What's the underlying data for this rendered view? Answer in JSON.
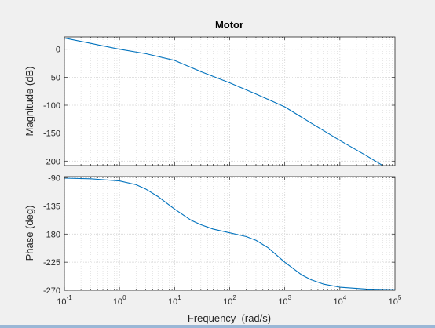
{
  "colors": {
    "figure_bg": "#f0f0f0",
    "axes_bg": "#ffffff",
    "line": "#0072bd",
    "grid": "#d6d6d6",
    "axis": "#262626"
  },
  "chart_data": [
    {
      "type": "line",
      "title": "Motor",
      "xlabel": "",
      "ylabel": "Magnitude (dB)",
      "xscale": "log",
      "xlim": [
        0.1,
        100000
      ],
      "ylim": [
        -208,
        22
      ],
      "yticks": [
        0,
        -50,
        -100,
        -150,
        -200
      ],
      "grid": true,
      "series": [
        {
          "x": [
            0.1,
            0.3,
            1,
            3,
            10,
            30,
            100,
            300,
            1000,
            3000,
            10000,
            30000,
            65000
          ],
          "values": [
            20,
            10.5,
            0,
            -8,
            -20,
            -40,
            -60,
            -80,
            -103,
            -132,
            -163,
            -190,
            -210
          ]
        }
      ]
    },
    {
      "type": "line",
      "title": "",
      "xlabel": "Frequency  (rad/s)",
      "ylabel": "Phase (deg)",
      "xscale": "log",
      "xlim": [
        0.1,
        100000
      ],
      "ylim": [
        -270,
        -88
      ],
      "yticks": [
        -90,
        -135,
        -180,
        -225,
        -270
      ],
      "xticks": [
        {
          "base": "10",
          "exp": "-1"
        },
        {
          "base": "10",
          "exp": "0"
        },
        {
          "base": "10",
          "exp": "1"
        },
        {
          "base": "10",
          "exp": "2"
        },
        {
          "base": "10",
          "exp": "3"
        },
        {
          "base": "10",
          "exp": "4"
        },
        {
          "base": "10",
          "exp": "5"
        }
      ],
      "grid": true,
      "series": [
        {
          "x": [
            0.1,
            0.3,
            1,
            2,
            3,
            5,
            10,
            20,
            30,
            50,
            100,
            200,
            300,
            500,
            1000,
            2000,
            3000,
            5000,
            10000,
            30000,
            100000
          ],
          "values": [
            -90.5,
            -91.5,
            -95,
            -101,
            -108,
            -120,
            -140,
            -158,
            -165,
            -172,
            -178,
            -184,
            -190,
            -202,
            -225,
            -245,
            -253,
            -260,
            -265,
            -268,
            -269
          ]
        }
      ]
    }
  ]
}
